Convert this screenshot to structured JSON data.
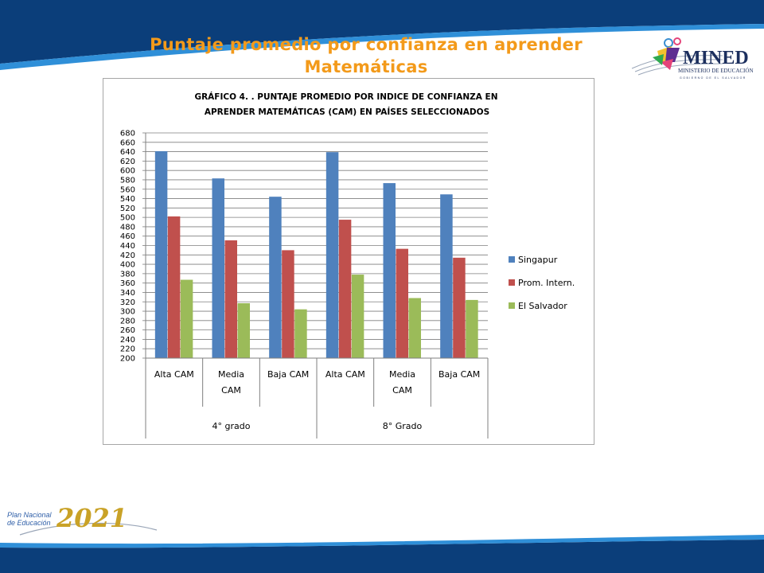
{
  "slide": {
    "title_line1": "Puntaje promedio por confianza en aprender",
    "title_line2": "Matemáticas"
  },
  "logos": {
    "mined": {
      "name": "MINED",
      "subtitle": "MINISTERIO DE EDUCACIÓN",
      "tagline": "GOBIERNO DE EL SALVADOR"
    },
    "plan": {
      "line1": "Plan Nacional",
      "line2": "de Educación",
      "year": "2021"
    }
  },
  "colors": {
    "navy": "#0b3e7a",
    "light_blue": "#2f8fd8",
    "title_orange": "#f39a1a",
    "gridline": "#7f7f7f"
  },
  "chart_data": {
    "type": "bar",
    "title_line1": "GRÁFICO 4. . PUNTAJE PROMEDIO  POR INDICE DE CONFIANZA EN",
    "title_line2": "APRENDER MATEMÁTICAS  (CAM) EN PAÍSES SELECCIONADOS",
    "categories": [
      "Alta CAM",
      "Media CAM",
      "Baja CAM",
      "Alta CAM",
      "Media CAM",
      "Baja CAM"
    ],
    "category_label_lines": [
      [
        "Alta CAM"
      ],
      [
        "Media",
        "CAM"
      ],
      [
        "Baja CAM"
      ],
      [
        "Alta CAM"
      ],
      [
        "Media",
        "CAM"
      ],
      [
        "Baja CAM"
      ]
    ],
    "groups": [
      {
        "label": "4° grado",
        "span": 3
      },
      {
        "label": "8° Grado",
        "span": 3
      }
    ],
    "series": [
      {
        "name": "Singapur",
        "color": "#4f81bd",
        "values": [
          641,
          583,
          544,
          639,
          573,
          549
        ]
      },
      {
        "name": "Prom. Intern.",
        "color": "#c0504d",
        "values": [
          502,
          451,
          430,
          495,
          433,
          414
        ]
      },
      {
        "name": "El Salvador",
        "color": "#9bbb59",
        "values": [
          367,
          317,
          304,
          378,
          328,
          324
        ]
      }
    ],
    "ylim": [
      200,
      680
    ],
    "ytick_step": 20,
    "grid": true,
    "legend_position": "right"
  }
}
